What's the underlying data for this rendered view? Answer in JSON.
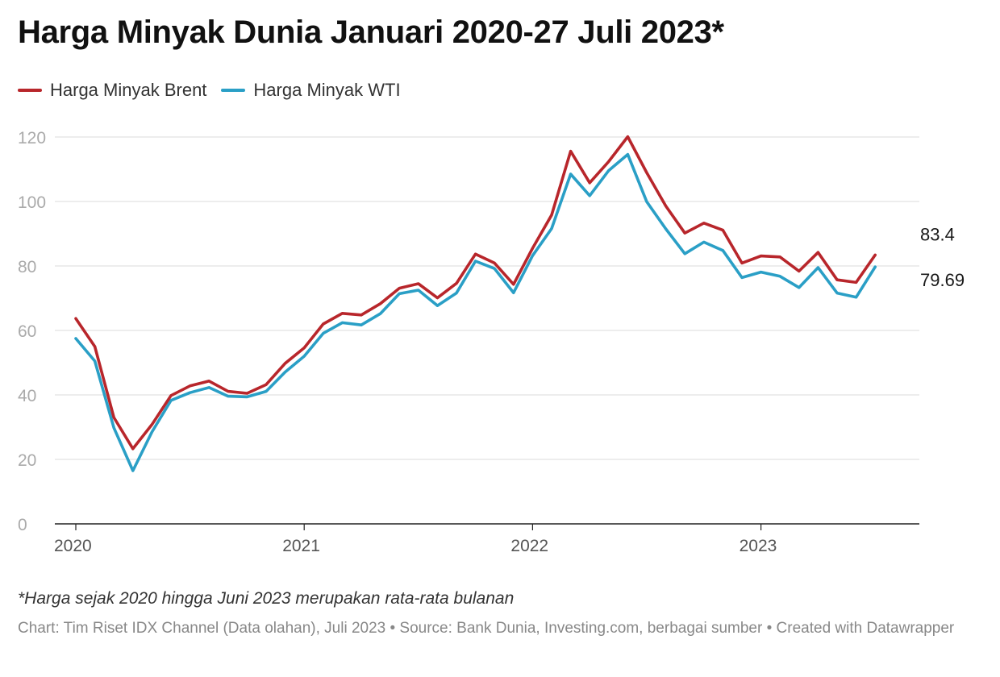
{
  "chart_data": {
    "type": "line",
    "title": "Harga Minyak Dunia Januari 2020-27 Juli 2023*",
    "xlabel": "",
    "ylabel": "",
    "ylim": [
      0,
      120
    ],
    "yticks": [
      "0",
      "20",
      "40",
      "60",
      "80",
      "100",
      "120"
    ],
    "xticks": [
      "2020",
      "2021",
      "2022",
      "2023"
    ],
    "grid": true,
    "legend_position": "top-left",
    "x": [
      "2020-01",
      "2020-02",
      "2020-03",
      "2020-04",
      "2020-05",
      "2020-06",
      "2020-07",
      "2020-08",
      "2020-09",
      "2020-10",
      "2020-11",
      "2020-12",
      "2021-01",
      "2021-02",
      "2021-03",
      "2021-04",
      "2021-05",
      "2021-06",
      "2021-07",
      "2021-08",
      "2021-09",
      "2021-10",
      "2021-11",
      "2021-12",
      "2022-01",
      "2022-02",
      "2022-03",
      "2022-04",
      "2022-05",
      "2022-06",
      "2022-07",
      "2022-08",
      "2022-09",
      "2022-10",
      "2022-11",
      "2022-12",
      "2023-01",
      "2023-02",
      "2023-03",
      "2023-04",
      "2023-05",
      "2023-06",
      "2023-07"
    ],
    "series": [
      {
        "name": "Harga Minyak Brent",
        "color": "#b8262b",
        "end_label": "83.4",
        "values": [
          63.7,
          55.0,
          33.0,
          23.3,
          30.8,
          39.8,
          42.8,
          44.3,
          41.1,
          40.5,
          43.2,
          49.8,
          54.6,
          62.0,
          65.3,
          64.8,
          68.3,
          73.1,
          74.5,
          70.1,
          74.6,
          83.7,
          80.9,
          74.3,
          85.5,
          95.8,
          115.6,
          105.8,
          112.4,
          120.1,
          108.9,
          98.6,
          90.2,
          93.3,
          91.1,
          80.9,
          83.1,
          82.8,
          78.4,
          84.2,
          75.7,
          74.9,
          83.4
        ]
      },
      {
        "name": "Harga Minyak WTI",
        "color": "#2a9fc6",
        "end_label": "79.69",
        "values": [
          57.5,
          50.5,
          29.8,
          16.5,
          28.5,
          38.3,
          40.7,
          42.3,
          39.6,
          39.4,
          41.1,
          47.1,
          52.0,
          59.1,
          62.4,
          61.7,
          65.2,
          71.4,
          72.5,
          67.7,
          71.6,
          81.5,
          79.2,
          71.7,
          83.2,
          91.6,
          108.5,
          101.8,
          109.6,
          114.6,
          99.9,
          91.5,
          83.8,
          87.4,
          84.8,
          76.4,
          78.1,
          76.8,
          73.3,
          79.5,
          71.6,
          70.3,
          79.69
        ]
      }
    ]
  },
  "footer": {
    "note": "*Harga sejak 2020 hingga Juni 2023 merupakan rata-rata bulanan",
    "source": "Chart: Tim Riset IDX Channel (Data olahan), Juli 2023 • Source: Bank Dunia, Investing.com, berbagai sumber • Created with Datawrapper"
  }
}
